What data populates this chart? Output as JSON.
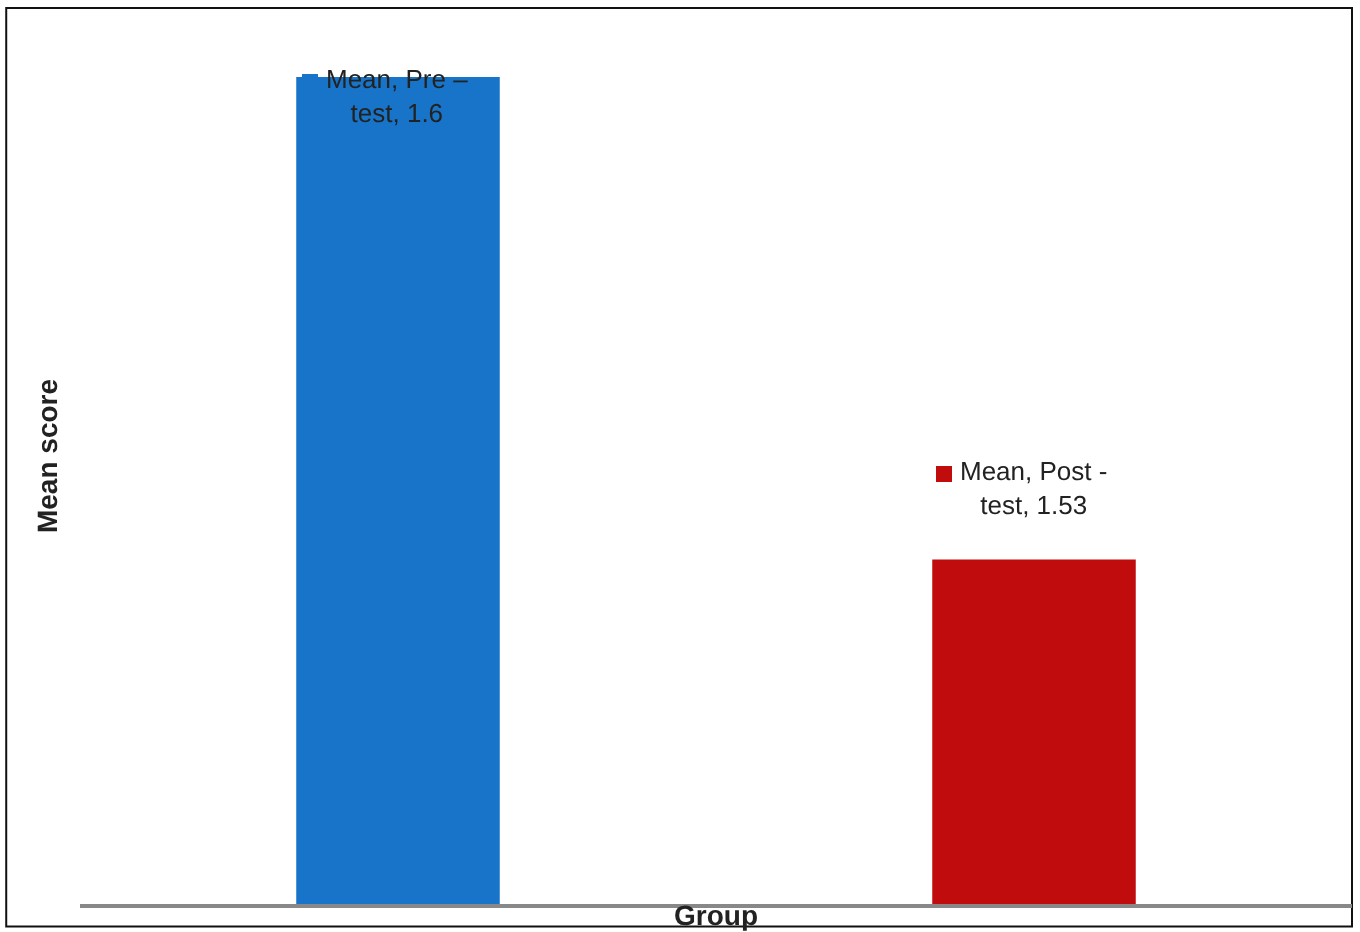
{
  "chart_data": {
    "type": "bar",
    "xlabel": "Group",
    "ylabel": "Mean score",
    "categories": [
      null,
      null
    ],
    "values": [
      1.6,
      1.53
    ],
    "colors": [
      "#1874c8",
      "#c00c0c"
    ],
    "value_labels": [
      "Mean, Pre – test, 1.6",
      "Mean, Post - test, 1.53"
    ],
    "ylim": [
      1.48,
      1.61
    ],
    "tick_labels": false,
    "grid": false,
    "legend": false
  }
}
